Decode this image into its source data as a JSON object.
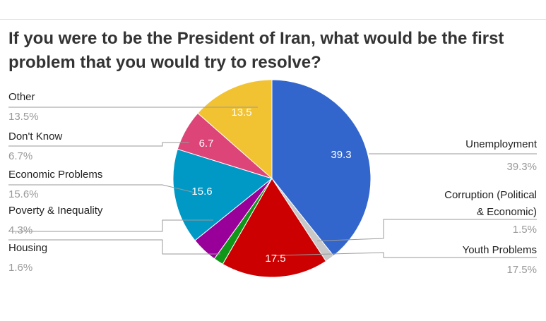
{
  "title": "If you were to be the President of Iran, what would be the first problem that you would try to resolve?",
  "chart_data": {
    "type": "pie",
    "title": "If you were to be the President of Iran, what would be the first problem that you would try to resolve?",
    "slices": [
      {
        "label": "Unemployment",
        "value": 39.3,
        "pct_text": "39.3%",
        "slice_text": "39.3",
        "color": "#3366cc"
      },
      {
        "label": "Corruption (Political & Economic)",
        "value": 1.5,
        "pct_text": "1.5%",
        "slice_text": "",
        "color": "#c8c8c8"
      },
      {
        "label": "Youth Problems",
        "value": 17.5,
        "pct_text": "17.5%",
        "slice_text": "17.5",
        "color": "#cc0000"
      },
      {
        "label": "Housing",
        "value": 1.6,
        "pct_text": "1.6%",
        "slice_text": "",
        "color": "#109618"
      },
      {
        "label": "Poverty & Inequality",
        "value": 4.3,
        "pct_text": "4.3%",
        "slice_text": "",
        "color": "#990099"
      },
      {
        "label": "Economic Problems",
        "value": 15.6,
        "pct_text": "15.6%",
        "slice_text": "15.6",
        "color": "#0099c6"
      },
      {
        "label": "Don't Know",
        "value": 6.7,
        "pct_text": "6.7%",
        "slice_text": "6.7",
        "color": "#dd4477"
      },
      {
        "label": "Other",
        "value": 13.5,
        "pct_text": "13.5%",
        "slice_text": "13.5",
        "color": "#f1c232"
      }
    ]
  }
}
